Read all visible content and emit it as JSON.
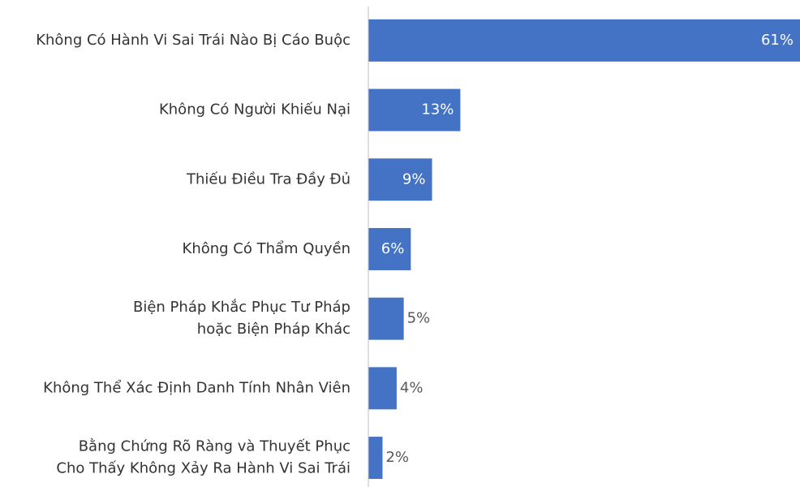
{
  "chart_data": {
    "type": "hbar",
    "categories": [
      "Không Có Hành Vi Sai Trái Nào Bị Cáo Buộc",
      "Không Có Người Khiếu Nại",
      "Thiếu Điều Tra Đầy Đủ",
      "Không Có Thẩm Quyền",
      "Biện Pháp Khắc Phục Tư Pháp\nhoặc Biện Pháp Khác",
      "Không Thể Xác Định Danh Tính Nhân Viên",
      "Bằng Chứng Rõ Ràng và Thuyết Phục\nCho Thấy Không Xảy Ra Hành Vi Sai Trái"
    ],
    "values": [
      61,
      13,
      9,
      6,
      5,
      4,
      2
    ],
    "value_labels": [
      "61%",
      "13%",
      "9%",
      "6%",
      "5%",
      "4%",
      "2%"
    ],
    "color": "#4472c4"
  }
}
